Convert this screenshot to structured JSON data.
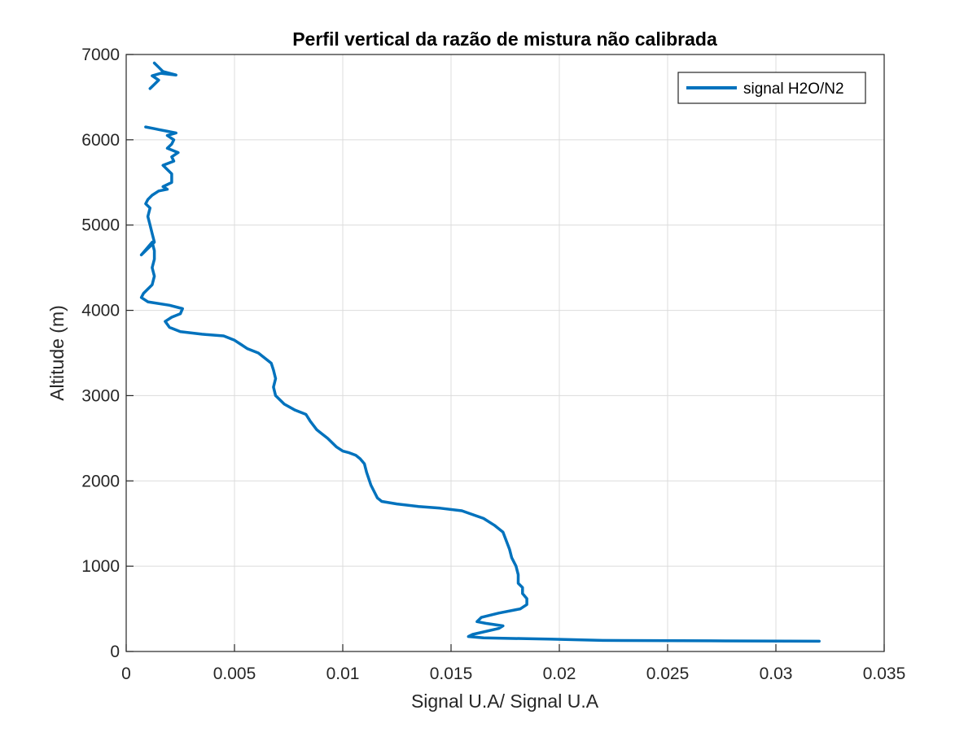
{
  "chart_data": {
    "type": "line",
    "title": "Perfil vertical da razão de mistura não calibrada",
    "xlabel": "Signal U.A/ Signal U.A",
    "ylabel": "Altitude (m)",
    "xlim": [
      0,
      0.035
    ],
    "ylim": [
      0,
      7000
    ],
    "xticks": [
      0,
      0.005,
      0.01,
      0.015,
      0.02,
      0.025,
      0.03,
      0.035
    ],
    "xtick_labels": [
      "0",
      "0.005",
      "0.01",
      "0.015",
      "0.02",
      "0.025",
      "0.03",
      "0.035"
    ],
    "yticks": [
      0,
      1000,
      2000,
      3000,
      4000,
      5000,
      6000,
      7000
    ],
    "ytick_labels": [
      "0",
      "1000",
      "2000",
      "3000",
      "4000",
      "5000",
      "6000",
      "7000"
    ],
    "grid": true,
    "legend_position": "top-right",
    "series": [
      {
        "name": "signal H2O/N2",
        "color": "#0072BD",
        "x": [
          0.032,
          0.027,
          0.022,
          0.0195,
          0.0185,
          0.0165,
          0.0158,
          0.016,
          0.0172,
          0.0174,
          0.0166,
          0.0162,
          0.0164,
          0.0172,
          0.0182,
          0.0185,
          0.0185,
          0.0183,
          0.0183,
          0.0181,
          0.0181,
          0.018,
          0.0178,
          0.0177,
          0.0174,
          0.017,
          0.0165,
          0.0155,
          0.0145,
          0.0135,
          0.0125,
          0.0118,
          0.0116,
          0.0115,
          0.0113,
          0.0111,
          0.011,
          0.0108,
          0.0106,
          0.0103,
          0.01,
          0.0097,
          0.0093,
          0.009,
          0.0088,
          0.0085,
          0.0083,
          0.0081,
          0.0078,
          0.0073,
          0.0069,
          0.0068,
          0.0069,
          0.0068,
          0.0067,
          0.0066,
          0.0061,
          0.0056,
          0.0053,
          0.005,
          0.0045,
          0.0035,
          0.0025,
          0.002,
          0.0018,
          0.0021,
          0.0025,
          0.0026,
          0.002,
          0.001,
          0.0007,
          0.0008,
          0.0012,
          0.0013,
          0.0012,
          0.0013,
          0.0013,
          0.0012,
          0.0007,
          0.0013,
          0.0012,
          0.0011,
          0.001,
          0.0011,
          0.0009,
          0.001,
          0.0012,
          0.0015,
          0.0019,
          0.0017,
          0.0021,
          0.0021,
          0.0017,
          0.0022,
          0.0021,
          0.0024,
          0.0019,
          0.0021,
          0.0022,
          0.0019,
          0.0023,
          0.0019,
          0.0015,
          0.0013,
          0.0009,
          null,
          0.0011,
          0.0013,
          0.0015,
          0.0012,
          0.0016,
          0.0023,
          0.0017,
          0.0015,
          0.0013
        ],
        "y": [
          120,
          125,
          130,
          145,
          150,
          160,
          175,
          200,
          270,
          300,
          330,
          350,
          400,
          450,
          500,
          550,
          620,
          680,
          750,
          800,
          900,
          1000,
          1100,
          1200,
          1400,
          1480,
          1560,
          1650,
          1680,
          1700,
          1730,
          1760,
          1800,
          1850,
          1950,
          2100,
          2200,
          2260,
          2300,
          2330,
          2350,
          2400,
          2500,
          2560,
          2600,
          2700,
          2780,
          2800,
          2830,
          2900,
          3000,
          3100,
          3200,
          3300,
          3380,
          3400,
          3500,
          3550,
          3600,
          3650,
          3700,
          3720,
          3750,
          3800,
          3870,
          3920,
          3960,
          4020,
          4060,
          4100,
          4150,
          4200,
          4300,
          4400,
          4500,
          4600,
          4700,
          4800,
          4650,
          4800,
          4900,
          5000,
          5100,
          5200,
          5250,
          5300,
          5350,
          5400,
          5420,
          5450,
          5500,
          5600,
          5700,
          5750,
          5800,
          5850,
          5900,
          5950,
          6000,
          6050,
          6080,
          6100,
          6120,
          6130,
          6150,
          null,
          6600,
          6650,
          6700,
          6750,
          6780,
          6760,
          6800,
          6850,
          6900
        ]
      }
    ]
  }
}
